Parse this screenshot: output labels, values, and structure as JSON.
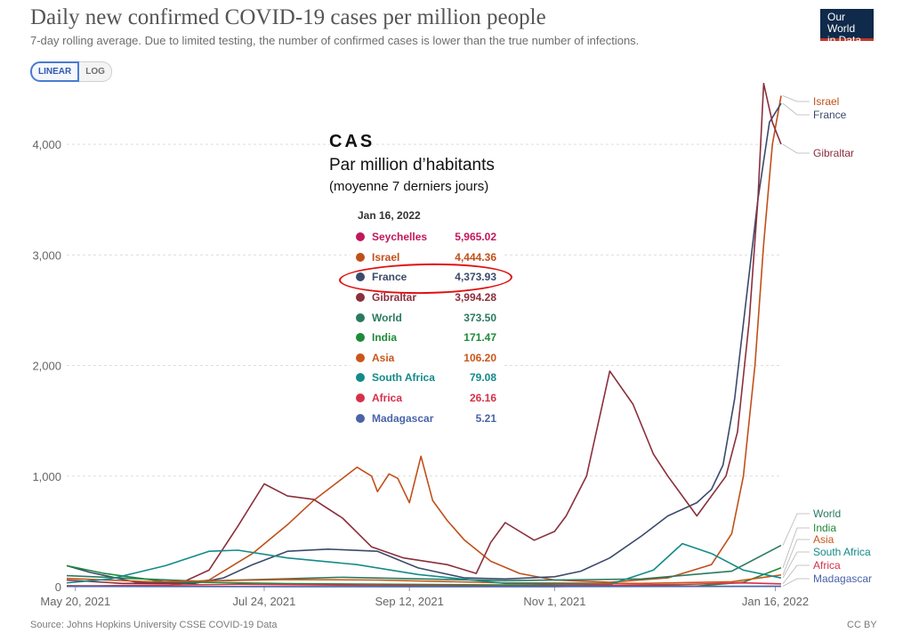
{
  "header": {
    "title": "Daily new confirmed COVID-19 cases per million people",
    "subtitle": "7-day rolling average. Due to limited testing, the number of confirmed cases is lower than the true number of infections.",
    "logo_line1": "Our World",
    "logo_line2": "in Data"
  },
  "scale_toggle": {
    "linear_label": "LINEAR",
    "log_label": "LOG",
    "active": "LINEAR"
  },
  "overlay": {
    "title": "CAS",
    "subtitle": "Par million d’habitants",
    "note": "(moyenne 7 derniers jours)"
  },
  "tooltip": {
    "date": "Jan 16, 2022",
    "rows": [
      {
        "name": "Seychelles",
        "value": "5,965.02",
        "color": "#c2185b"
      },
      {
        "name": "Israel",
        "value": "4,444.36",
        "color": "#c0501a"
      },
      {
        "name": "France",
        "value": "4,373.93",
        "color": "#3b4a6b"
      },
      {
        "name": "Gibraltar",
        "value": "3,994.28",
        "color": "#8b2f3c"
      },
      {
        "name": "World",
        "value": "373.50",
        "color": "#2a7a5f"
      },
      {
        "name": "India",
        "value": "171.47",
        "color": "#1f8a3a"
      },
      {
        "name": "Asia",
        "value": "106.20",
        "color": "#c9561b"
      },
      {
        "name": "South Africa",
        "value": "79.08",
        "color": "#138a8a"
      },
      {
        "name": "Africa",
        "value": "26.16",
        "color": "#d63049"
      },
      {
        "name": "Madagascar",
        "value": "5.21",
        "color": "#4a63a8"
      }
    ]
  },
  "footer": {
    "source": "Source: Johns Hopkins University CSSE COVID-19 Data",
    "license": "CC BY"
  },
  "chart_data": {
    "type": "line",
    "title": "Daily new confirmed COVID-19 cases per million people",
    "subtitle": "7-day rolling average. Due to limited testing, the number of confirmed cases is lower than the true number of infections.",
    "x_start": "May 17, 2021",
    "x_end": "Jan 18, 2022",
    "x_ticks": [
      "May 20, 2021",
      "Jul 24, 2021",
      "Sep 12, 2021",
      "Nov 1, 2021",
      "Jan 16, 2022"
    ],
    "y_ticks": [
      0,
      1000,
      2000,
      3000,
      4000
    ],
    "ylim": [
      0,
      4500
    ],
    "grid": true,
    "legend": "line-end labels on the right",
    "series": [
      {
        "name": "Israel",
        "color": "#c0501a",
        "x": [
          "May 17, 2021",
          "Jun 1, 2021",
          "Jun 20, 2021",
          "Jul 5, 2021",
          "Jul 20, 2021",
          "Aug 1, 2021",
          "Aug 10, 2021",
          "Aug 20, 2021",
          "Aug 25, 2021",
          "Aug 30, 2021",
          "Sep 1, 2021",
          "Sep 5, 2021",
          "Sep 8, 2021",
          "Sep 12, 2021",
          "Sep 16, 2021",
          "Sep 20, 2021",
          "Sep 25, 2021",
          "Oct 1, 2021",
          "Oct 10, 2021",
          "Oct 20, 2021",
          "Nov 1, 2021",
          "Nov 20, 2021",
          "Dec 10, 2021",
          "Dec 25, 2021",
          "Jan 1, 2022",
          "Jan 5, 2022",
          "Jan 9, 2022",
          "Jan 12, 2022",
          "Jan 15, 2022",
          "Jan 18, 2022"
        ],
        "y": [
          10,
          5,
          10,
          60,
          300,
          560,
          780,
          980,
          1080,
          1000,
          860,
          1020,
          980,
          760,
          1180,
          780,
          600,
          420,
          230,
          120,
          60,
          40,
          80,
          200,
          480,
          1000,
          2000,
          3100,
          4000,
          4440
        ]
      },
      {
        "name": "France",
        "color": "#3b4a6b",
        "x": [
          "May 17, 2021",
          "May 25, 2021",
          "Jun 10, 2021",
          "Jun 30, 2021",
          "Jul 10, 2021",
          "Jul 20, 2021",
          "Aug 1, 2021",
          "Aug 15, 2021",
          "Sep 1, 2021",
          "Sep 15, 2021",
          "Oct 1, 2021",
          "Oct 15, 2021",
          "Nov 1, 2021",
          "Nov 10, 2021",
          "Nov 20, 2021",
          "Dec 1, 2021",
          "Dec 10, 2021",
          "Dec 20, 2021",
          "Dec 25, 2021",
          "Dec 29, 2021",
          "Jan 2, 2022",
          "Jan 6, 2022",
          "Jan 10, 2022",
          "Jan 14, 2022",
          "Jan 18, 2022"
        ],
        "y": [
          190,
          130,
          40,
          30,
          80,
          200,
          320,
          340,
          320,
          170,
          80,
          70,
          90,
          140,
          260,
          460,
          640,
          760,
          880,
          1100,
          1700,
          2600,
          3500,
          4200,
          4370
        ]
      },
      {
        "name": "Gibraltar",
        "color": "#8b2f3c",
        "x": [
          "May 17, 2021",
          "Jun 5, 2021",
          "Jun 25, 2021",
          "Jul 5, 2021",
          "Jul 15, 2021",
          "Jul 24, 2021",
          "Aug 1, 2021",
          "Aug 10, 2021",
          "Aug 20, 2021",
          "Aug 30, 2021",
          "Sep 10, 2021",
          "Sep 25, 2021",
          "Oct 5, 2021",
          "Oct 10, 2021",
          "Oct 15, 2021",
          "Oct 25, 2021",
          "Nov 1, 2021",
          "Nov 5, 2021",
          "Nov 12, 2021",
          "Nov 20, 2021",
          "Nov 28, 2021",
          "Dec 5, 2021",
          "Dec 10, 2021",
          "Dec 20, 2021",
          "Dec 30, 2021",
          "Jan 3, 2022",
          "Jan 7, 2022",
          "Jan 10, 2022",
          "Jan 12, 2022",
          "Jan 15, 2022",
          "Jan 18, 2022"
        ],
        "y": [
          60,
          30,
          30,
          150,
          550,
          930,
          820,
          790,
          620,
          360,
          260,
          200,
          120,
          400,
          580,
          420,
          500,
          640,
          1000,
          1950,
          1650,
          1200,
          1000,
          640,
          1000,
          1400,
          2400,
          3500,
          4550,
          4200,
          4000
        ]
      },
      {
        "name": "World",
        "color": "#2a7a5f",
        "x": [
          "May 17, 2021",
          "Jul 1, 2021",
          "Aug 20, 2021",
          "Oct 15, 2021",
          "Dec 1, 2021",
          "Jan 1, 2022",
          "Jan 18, 2022"
        ],
        "y": [
          100,
          50,
          85,
          55,
          70,
          140,
          373.5
        ]
      },
      {
        "name": "India",
        "color": "#1f8a3a",
        "x": [
          "May 17, 2021",
          "May 30, 2021",
          "Jun 20, 2021",
          "Aug 1, 2021",
          "Oct 1, 2021",
          "Dec 20, 2021",
          "Jan 5, 2022",
          "Jan 18, 2022"
        ],
        "y": [
          190,
          120,
          45,
          28,
          18,
          6,
          40,
          171.47
        ]
      },
      {
        "name": "Asia",
        "color": "#c9561b",
        "x": [
          "May 17, 2021",
          "Jun 15, 2021",
          "Aug 1, 2021",
          "Sep 1, 2021",
          "Oct 15, 2021",
          "Dec 1, 2021",
          "Jan 1, 2022",
          "Jan 18, 2022"
        ],
        "y": [
          75,
          45,
          65,
          60,
          35,
          30,
          45,
          106.2
        ]
      },
      {
        "name": "South Africa",
        "color": "#138a8a",
        "x": [
          "May 17, 2021",
          "Jun 1, 2021",
          "Jun 20, 2021",
          "Jul 5, 2021",
          "Jul 15, 2021",
          "Aug 1, 2021",
          "Aug 25, 2021",
          "Sep 15, 2021",
          "Oct 15, 2021",
          "Nov 20, 2021",
          "Dec 5, 2021",
          "Dec 15, 2021",
          "Dec 25, 2021",
          "Jan 5, 2022",
          "Jan 18, 2022"
        ],
        "y": [
          35,
          70,
          190,
          320,
          330,
          260,
          200,
          110,
          30,
          20,
          150,
          390,
          300,
          150,
          79
        ]
      },
      {
        "name": "Africa",
        "color": "#d63049",
        "x": [
          "May 17, 2021",
          "Jul 15, 2021",
          "Sep 1, 2021",
          "Oct 15, 2021",
          "Dec 15, 2021",
          "Jan 5, 2022",
          "Jan 18, 2022"
        ],
        "y": [
          5,
          22,
          12,
          5,
          20,
          35,
          26
        ]
      },
      {
        "name": "Madagascar",
        "color": "#4a63a8",
        "x": [
          "May 17, 2021",
          "Aug 1, 2021",
          "Nov 1, 2021",
          "Jan 1, 2022",
          "Jan 18, 2022"
        ],
        "y": [
          3,
          1,
          1,
          3,
          5
        ]
      }
    ]
  }
}
